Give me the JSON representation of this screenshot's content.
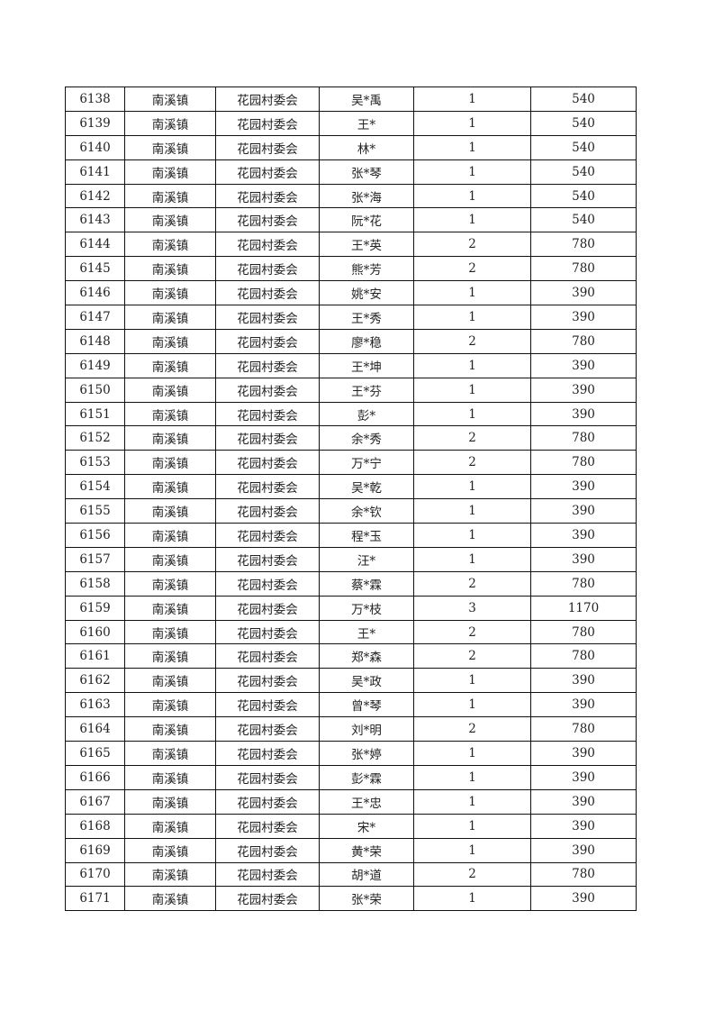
{
  "table": {
    "rows": [
      [
        "6138",
        "南溪镇",
        "花园村委会",
        "吴*禹",
        "1",
        "540"
      ],
      [
        "6139",
        "南溪镇",
        "花园村委会",
        "王*",
        "1",
        "540"
      ],
      [
        "6140",
        "南溪镇",
        "花园村委会",
        "林*",
        "1",
        "540"
      ],
      [
        "6141",
        "南溪镇",
        "花园村委会",
        "张*琴",
        "1",
        "540"
      ],
      [
        "6142",
        "南溪镇",
        "花园村委会",
        "张*海",
        "1",
        "540"
      ],
      [
        "6143",
        "南溪镇",
        "花园村委会",
        "阮*花",
        "1",
        "540"
      ],
      [
        "6144",
        "南溪镇",
        "花园村委会",
        "王*英",
        "2",
        "780"
      ],
      [
        "6145",
        "南溪镇",
        "花园村委会",
        "熊*芳",
        "2",
        "780"
      ],
      [
        "6146",
        "南溪镇",
        "花园村委会",
        "姚*安",
        "1",
        "390"
      ],
      [
        "6147",
        "南溪镇",
        "花园村委会",
        "王*秀",
        "1",
        "390"
      ],
      [
        "6148",
        "南溪镇",
        "花园村委会",
        "廖*稳",
        "2",
        "780"
      ],
      [
        "6149",
        "南溪镇",
        "花园村委会",
        "王*坤",
        "1",
        "390"
      ],
      [
        "6150",
        "南溪镇",
        "花园村委会",
        "王*芬",
        "1",
        "390"
      ],
      [
        "6151",
        "南溪镇",
        "花园村委会",
        "彭*",
        "1",
        "390"
      ],
      [
        "6152",
        "南溪镇",
        "花园村委会",
        "余*秀",
        "2",
        "780"
      ],
      [
        "6153",
        "南溪镇",
        "花园村委会",
        "万*宁",
        "2",
        "780"
      ],
      [
        "6154",
        "南溪镇",
        "花园村委会",
        "吴*乾",
        "1",
        "390"
      ],
      [
        "6155",
        "南溪镇",
        "花园村委会",
        "余*钦",
        "1",
        "390"
      ],
      [
        "6156",
        "南溪镇",
        "花园村委会",
        "程*玉",
        "1",
        "390"
      ],
      [
        "6157",
        "南溪镇",
        "花园村委会",
        "汪*",
        "1",
        "390"
      ],
      [
        "6158",
        "南溪镇",
        "花园村委会",
        "蔡*霖",
        "2",
        "780"
      ],
      [
        "6159",
        "南溪镇",
        "花园村委会",
        "万*枝",
        "3",
        "1170"
      ],
      [
        "6160",
        "南溪镇",
        "花园村委会",
        "王*",
        "2",
        "780"
      ],
      [
        "6161",
        "南溪镇",
        "花园村委会",
        "郑*森",
        "2",
        "780"
      ],
      [
        "6162",
        "南溪镇",
        "花园村委会",
        "吴*政",
        "1",
        "390"
      ],
      [
        "6163",
        "南溪镇",
        "花园村委会",
        "曾*琴",
        "1",
        "390"
      ],
      [
        "6164",
        "南溪镇",
        "花园村委会",
        "刘*明",
        "2",
        "780"
      ],
      [
        "6165",
        "南溪镇",
        "花园村委会",
        "张*婷",
        "1",
        "390"
      ],
      [
        "6166",
        "南溪镇",
        "花园村委会",
        "彭*霖",
        "1",
        "390"
      ],
      [
        "6167",
        "南溪镇",
        "花园村委会",
        "王*忠",
        "1",
        "390"
      ],
      [
        "6168",
        "南溪镇",
        "花园村委会",
        "宋*",
        "1",
        "390"
      ],
      [
        "6169",
        "南溪镇",
        "花园村委会",
        "黄*荣",
        "1",
        "390"
      ],
      [
        "6170",
        "南溪镇",
        "花园村委会",
        "胡*道",
        "2",
        "780"
      ],
      [
        "6171",
        "南溪镇",
        "花园村委会",
        "张*荣",
        "1",
        "390"
      ]
    ]
  }
}
